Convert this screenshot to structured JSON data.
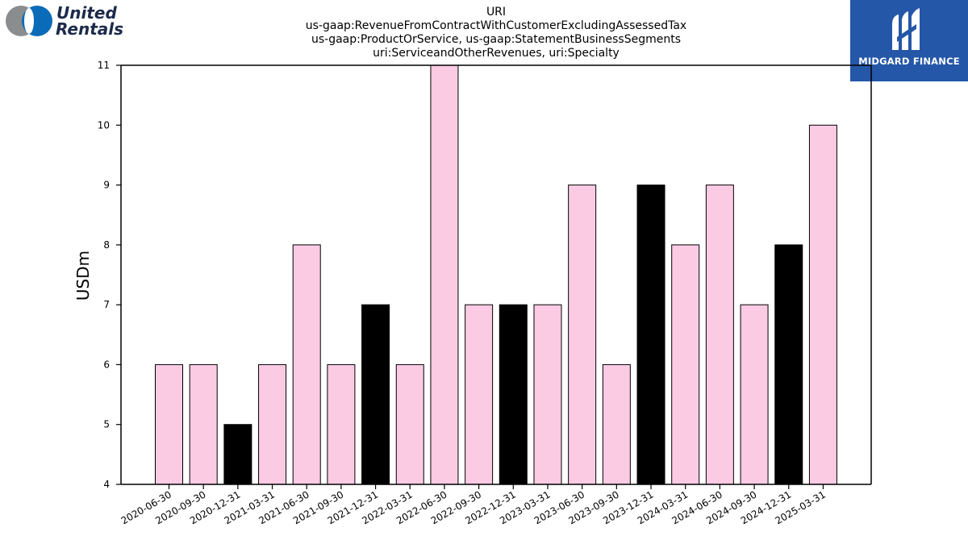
{
  "logos": {
    "left_line1": "United",
    "left_line2": "Rentals",
    "right_text": "MIDGARD FINANCE"
  },
  "colors": {
    "pink": "#fbcbe4",
    "black": "#000000",
    "brand_blue": "#2457a7",
    "ur_blue": "#0a6bb8",
    "ur_gray": "#8a8c8e"
  },
  "chart_data": {
    "type": "bar",
    "title_lines": [
      "URI",
      "us-gaap:RevenueFromContractWithCustomerExcludingAssessedTax",
      "us-gaap:ProductOrService, us-gaap:StatementBusinessSegments",
      "uri:ServiceandOtherRevenues, uri:Specialty"
    ],
    "xlabel": "",
    "ylabel": "USDm",
    "ylim": [
      4,
      11
    ],
    "yticks": [
      4,
      5,
      6,
      7,
      8,
      9,
      10,
      11
    ],
    "grid": false,
    "categories": [
      "2020-06-30",
      "2020-09-30",
      "2020-12-31",
      "2021-03-31",
      "2021-06-30",
      "2021-09-30",
      "2021-12-31",
      "2022-03-31",
      "2022-06-30",
      "2022-09-30",
      "2022-12-31",
      "2023-03-31",
      "2023-06-30",
      "2023-09-30",
      "2023-12-31",
      "2024-03-31",
      "2024-06-30",
      "2024-09-30",
      "2024-12-31",
      "2025-03-31"
    ],
    "values": [
      6,
      6,
      5,
      6,
      8,
      6,
      7,
      6,
      11,
      7,
      7,
      7,
      9,
      6,
      9,
      8,
      9,
      7,
      8,
      10
    ],
    "bar_colors": [
      "pink",
      "pink",
      "black",
      "pink",
      "pink",
      "pink",
      "black",
      "pink",
      "pink",
      "pink",
      "black",
      "pink",
      "pink",
      "pink",
      "black",
      "pink",
      "pink",
      "pink",
      "black",
      "pink"
    ]
  }
}
